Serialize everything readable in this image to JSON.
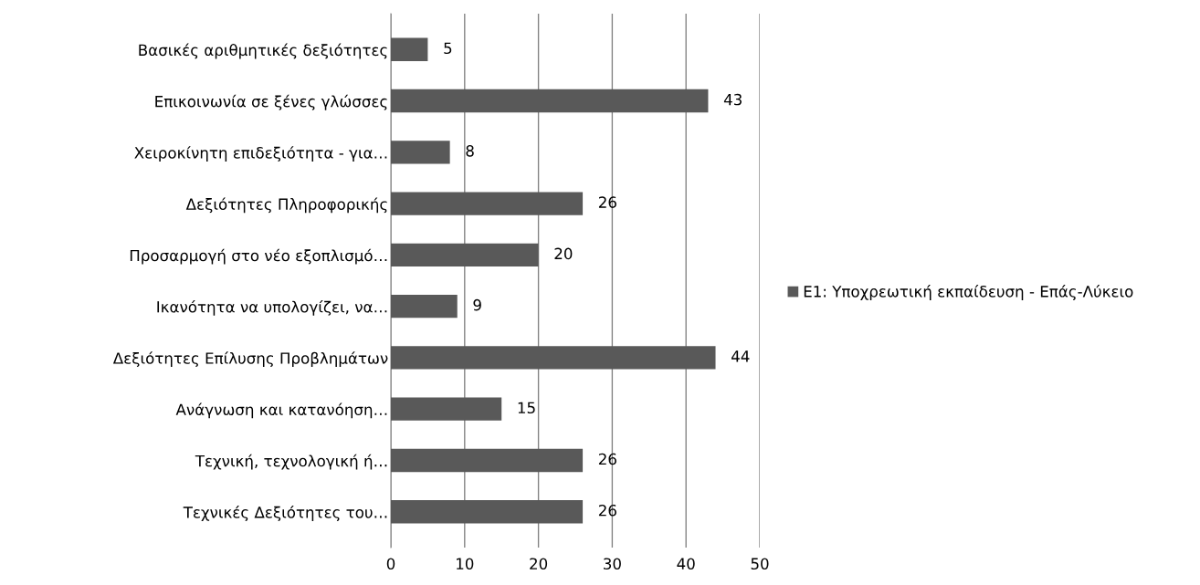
{
  "chart_data": {
    "type": "bar",
    "orientation": "horizontal",
    "categories": [
      "Βασικές αριθμητικές δεξιότητες",
      "Επικοινωνία σε ξένες γλώσσες",
      "Χειροκίνητη επιδεξιότητα - για…",
      "Δεξιότητες Πληροφορικής",
      "Προσαρμογή στο νέο εξοπλισμό…",
      "Ικανότητα να υπολογίζει, να…",
      "Δεξιότητες Επίλυσης Προβλημάτων",
      "Ανάγνωση και κατανόηση…",
      "Τεχνική, τεχνολογική ή…",
      "Τεχνικές Δεξιότητες του…"
    ],
    "series": [
      {
        "name": "Ε1: Υποχρεωτική εκπαίδευση - Επάς-Λύκειο",
        "color": "#595959",
        "values": [
          5,
          43,
          8,
          26,
          20,
          9,
          44,
          15,
          26,
          26
        ]
      }
    ],
    "xlim": [
      0,
      50
    ],
    "xticks": [
      0,
      10,
      20,
      30,
      40,
      50
    ],
    "grid": "x",
    "legend": "right",
    "data_labels": true
  }
}
